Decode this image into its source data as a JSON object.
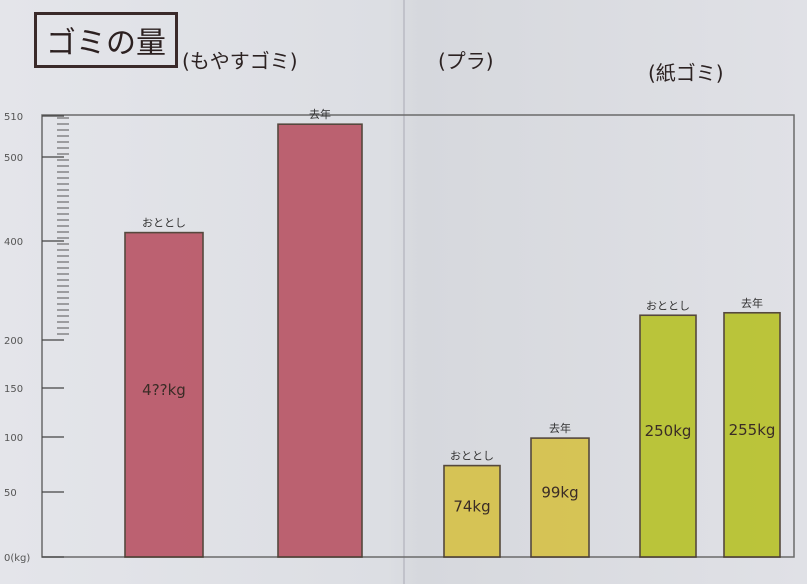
{
  "chart_data": {
    "type": "bar",
    "title": "ゴミの量",
    "groups": [
      {
        "label": "(もやすゴミ)",
        "color": "#b95767",
        "bars": [
          {
            "label": "おととし",
            "value_label": "4??kg",
            "value": 410
          },
          {
            "label": "去年",
            "value_label": "",
            "value": 508
          }
        ]
      },
      {
        "label": "(プラ)",
        "color": "#d6c24a",
        "bars": [
          {
            "label": "おととし",
            "value_label": "74kg",
            "value": 74
          },
          {
            "label": "去年",
            "value_label": "99kg",
            "value": 99
          }
        ]
      },
      {
        "label": "(紙ゴミ)",
        "color": "#b8c22c",
        "bars": [
          {
            "label": "おととし",
            "value_label": "250kg",
            "value": 250
          },
          {
            "label": "去年",
            "value_label": "255kg",
            "value": 255
          }
        ]
      }
    ],
    "y_ticks": [
      "0(kg)",
      "50",
      "100",
      "150",
      "200",
      "400",
      "500",
      "510"
    ],
    "y_scale": "hand-drawn, non-linear"
  }
}
